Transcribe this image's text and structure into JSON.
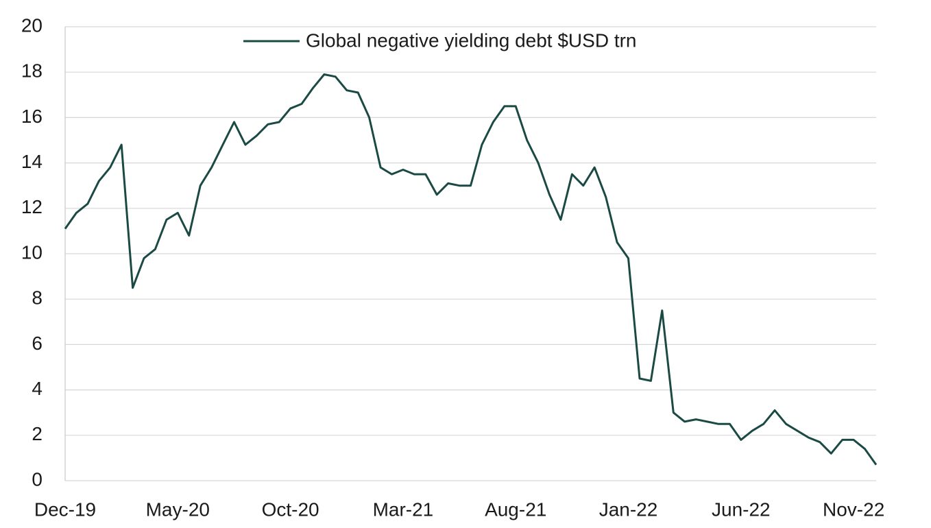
{
  "chart_data": {
    "type": "line",
    "categories": [
      "Dec-19",
      null,
      null,
      null,
      null,
      null,
      null,
      null,
      null,
      null,
      "May-20",
      null,
      null,
      null,
      null,
      null,
      null,
      null,
      null,
      null,
      "Oct-20",
      null,
      null,
      null,
      null,
      null,
      null,
      null,
      null,
      null,
      "Mar-21",
      null,
      null,
      null,
      null,
      null,
      null,
      null,
      null,
      null,
      "Aug-21",
      null,
      null,
      null,
      null,
      null,
      null,
      null,
      null,
      null,
      "Jan-22",
      null,
      null,
      null,
      null,
      null,
      null,
      null,
      null,
      null,
      "Jun-22",
      null,
      null,
      null,
      null,
      null,
      null,
      null,
      null,
      null,
      "Nov-22",
      null,
      null
    ],
    "series": [
      {
        "name": "Global negative yielding debt $USD trn",
        "color": "#1b4a45",
        "values": [
          11.1,
          11.8,
          12.2,
          13.2,
          13.8,
          14.8,
          8.5,
          9.8,
          10.2,
          11.5,
          11.8,
          10.8,
          13.0,
          13.8,
          14.8,
          15.8,
          14.8,
          15.2,
          15.7,
          15.8,
          16.4,
          16.6,
          17.3,
          17.9,
          17.8,
          17.2,
          17.1,
          16.0,
          13.8,
          13.5,
          13.7,
          13.5,
          13.5,
          12.6,
          13.1,
          13.0,
          13.0,
          14.8,
          15.8,
          16.5,
          16.5,
          15.0,
          14.0,
          12.6,
          11.5,
          13.5,
          13.0,
          13.8,
          12.5,
          10.5,
          9.8,
          4.5,
          4.4,
          7.5,
          3.0,
          2.6,
          2.7,
          2.6,
          2.5,
          2.5,
          1.8,
          2.2,
          2.5,
          3.1,
          2.5,
          2.2,
          1.9,
          1.7,
          1.2,
          1.8,
          1.8,
          1.4,
          0.7
        ]
      }
    ],
    "ylim": [
      0,
      20
    ],
    "yticks": [
      0,
      2,
      4,
      6,
      8,
      10,
      12,
      14,
      16,
      18,
      20
    ],
    "grid": true,
    "legend": "top"
  }
}
